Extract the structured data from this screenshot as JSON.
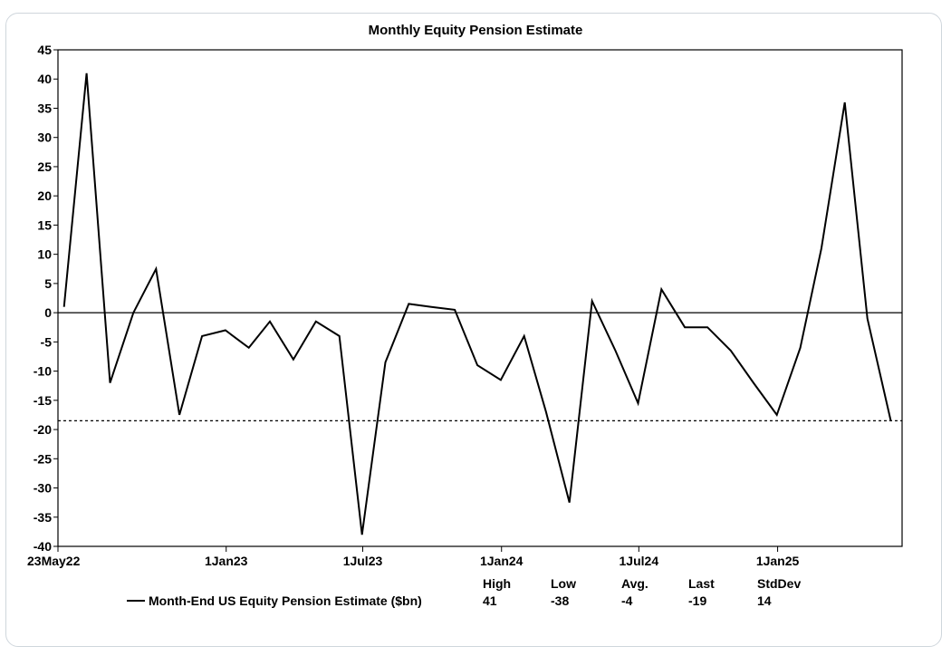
{
  "chart_data": {
    "type": "line",
    "title": "Monthly Equity Pension Estimate",
    "ylim": [
      -40,
      45
    ],
    "yticks": [
      45,
      40,
      35,
      30,
      25,
      20,
      15,
      10,
      5,
      0,
      -5,
      -10,
      -15,
      -20,
      -25,
      -30,
      -35,
      -40
    ],
    "ytick_labels": [
      "45",
      "40",
      "35",
      "30",
      "25",
      "20",
      "15",
      "10",
      "5",
      "0",
      "-5",
      "-10",
      "-15",
      "-20",
      "-25",
      "-30",
      "-35",
      "-40"
    ],
    "xticks": [
      {
        "date": "2022-05-23",
        "label": "23May22"
      },
      {
        "date": "2023-01-01",
        "label": "1Jan23"
      },
      {
        "date": "2023-07-01",
        "label": "1Jul23"
      },
      {
        "date": "2024-01-01",
        "label": "1Jan24"
      },
      {
        "date": "2024-07-01",
        "label": "1Jul24"
      },
      {
        "date": "2025-01-01",
        "label": "1Jan25"
      }
    ],
    "reference_lines": {
      "zero": 0,
      "last_dashed": -18.5
    },
    "series": [
      {
        "name": "Month-End US Equity Pension Estimate ($bn)",
        "color": "#000000",
        "points": [
          {
            "x": "2022-05-31",
            "y": 1
          },
          {
            "x": "2022-06-30",
            "y": 41
          },
          {
            "x": "2022-07-31",
            "y": -12
          },
          {
            "x": "2022-08-31",
            "y": 0
          },
          {
            "x": "2022-09-30",
            "y": 7.5
          },
          {
            "x": "2022-10-31",
            "y": -17.5
          },
          {
            "x": "2022-11-30",
            "y": -4
          },
          {
            "x": "2022-12-31",
            "y": -3
          },
          {
            "x": "2023-01-31",
            "y": -6
          },
          {
            "x": "2023-02-28",
            "y": -1.5
          },
          {
            "x": "2023-03-31",
            "y": -8
          },
          {
            "x": "2023-04-30",
            "y": -1.5
          },
          {
            "x": "2023-05-31",
            "y": -4
          },
          {
            "x": "2023-06-30",
            "y": -38
          },
          {
            "x": "2023-07-31",
            "y": -8.5
          },
          {
            "x": "2023-08-31",
            "y": 1.5
          },
          {
            "x": "2023-09-30",
            "y": 1
          },
          {
            "x": "2023-10-31",
            "y": 0.5
          },
          {
            "x": "2023-11-30",
            "y": -9
          },
          {
            "x": "2023-12-31",
            "y": -11.5
          },
          {
            "x": "2024-01-31",
            "y": -4
          },
          {
            "x": "2024-02-29",
            "y": -17
          },
          {
            "x": "2024-03-31",
            "y": -32.5
          },
          {
            "x": "2024-04-30",
            "y": 2
          },
          {
            "x": "2024-05-31",
            "y": -6.5
          },
          {
            "x": "2024-06-30",
            "y": -15.5
          },
          {
            "x": "2024-07-31",
            "y": 4
          },
          {
            "x": "2024-08-31",
            "y": -2.5
          },
          {
            "x": "2024-09-30",
            "y": -2.5
          },
          {
            "x": "2024-10-31",
            "y": -6.5
          },
          {
            "x": "2024-11-30",
            "y": -12
          },
          {
            "x": "2024-12-31",
            "y": -17.5
          },
          {
            "x": "2025-01-31",
            "y": -6
          },
          {
            "x": "2025-02-28",
            "y": 11
          },
          {
            "x": "2025-03-31",
            "y": 36
          },
          {
            "x": "2025-04-30",
            "y": -1
          },
          {
            "x": "2025-05-31",
            "y": -18.5
          }
        ]
      }
    ],
    "legend": {
      "label": "Month-End US Equity Pension Estimate ($bn)",
      "stats": [
        {
          "header": "High",
          "value": "41"
        },
        {
          "header": "Low",
          "value": "-38"
        },
        {
          "header": "Avg.",
          "value": "-4"
        },
        {
          "header": "Last",
          "value": "-19"
        },
        {
          "header": "StdDev",
          "value": "14"
        }
      ]
    }
  }
}
